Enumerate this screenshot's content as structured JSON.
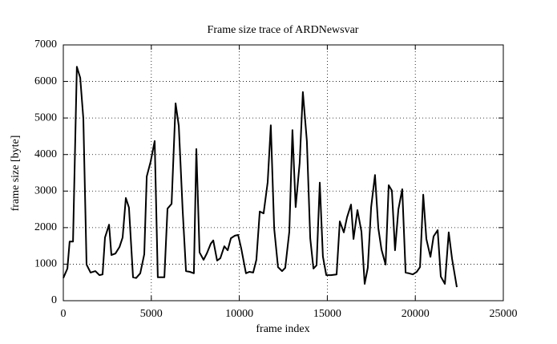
{
  "chart_data": {
    "type": "line",
    "title": "Frame size trace of ARDNewsvar",
    "x_label": "frame index",
    "y_label": "frame size [byte]",
    "color": "#000000",
    "grid": true,
    "xlim": [
      0,
      25000
    ],
    "xticks": [
      0,
      5000,
      10000,
      15000,
      20000,
      25000
    ],
    "ylim": [
      0,
      7000
    ],
    "yticks": [
      0,
      1000,
      2000,
      3000,
      4000,
      5000,
      6000,
      7000
    ],
    "x": [
      0,
      230,
      360,
      550,
      770,
      960,
      1140,
      1320,
      1550,
      1820,
      2050,
      2230,
      2370,
      2600,
      2730,
      2960,
      3190,
      3370,
      3550,
      3730,
      3960,
      4140,
      4370,
      4600,
      4740,
      4960,
      5190,
      5370,
      5740,
      5920,
      6150,
      6380,
      6560,
      6780,
      6970,
      7190,
      7420,
      7560,
      7740,
      7970,
      8150,
      8380,
      8520,
      8740,
      8920,
      9150,
      9340,
      9520,
      9750,
      9930,
      10110,
      10380,
      10570,
      10790,
      10970,
      11160,
      11380,
      11610,
      11790,
      11980,
      12200,
      12430,
      12610,
      12840,
      13020,
      13200,
      13430,
      13610,
      13840,
      14030,
      14210,
      14390,
      14570,
      14750,
      14940,
      15210,
      15530,
      15710,
      15940,
      16120,
      16350,
      16490,
      16710,
      16940,
      17120,
      17300,
      17490,
      17710,
      17900,
      18080,
      18310,
      18490,
      18670,
      18850,
      19040,
      19260,
      19450,
      19630,
      19860,
      20080,
      20270,
      20450,
      20630,
      20860,
      21040,
      21270,
      21450,
      21680,
      21900,
      22090,
      22360
    ],
    "values": [
      620,
      880,
      1620,
      1620,
      6400,
      6100,
      4980,
      990,
      770,
      810,
      700,
      720,
      1730,
      2080,
      1250,
      1290,
      1470,
      1730,
      2810,
      2550,
      640,
      620,
      750,
      1270,
      3400,
      3800,
      4370,
      640,
      640,
      2520,
      2650,
      5400,
      4780,
      2480,
      810,
      790,
      750,
      4150,
      1320,
      1120,
      1290,
      1560,
      1650,
      1100,
      1160,
      1490,
      1380,
      1710,
      1780,
      1800,
      1430,
      750,
      790,
      770,
      1120,
      2440,
      2390,
      3240,
      4800,
      1980,
      920,
      810,
      900,
      1890,
      4670,
      2560,
      3770,
      5710,
      4370,
      1710,
      880,
      970,
      3230,
      1210,
      700,
      700,
      720,
      2170,
      1870,
      2280,
      2630,
      1690,
      2480,
      1890,
      460,
      900,
      2560,
      3440,
      1980,
      1400,
      990,
      3160,
      3010,
      1380,
      2500,
      3050,
      770,
      750,
      720,
      790,
      920,
      2900,
      1690,
      1200,
      1760,
      1930,
      660,
      460,
      1870,
      1140,
      370
    ]
  }
}
